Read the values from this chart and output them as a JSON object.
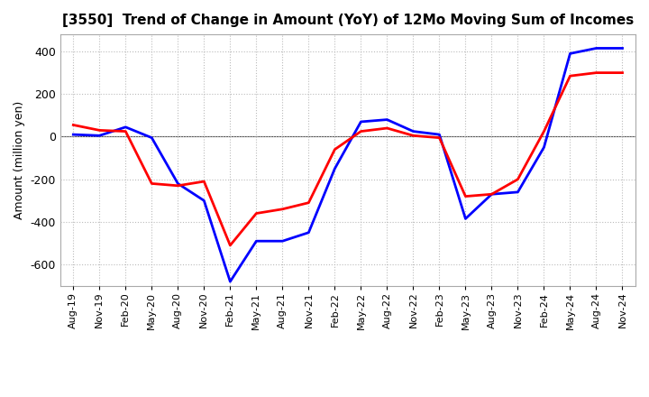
{
  "title": "[3550]  Trend of Change in Amount (YoY) of 12Mo Moving Sum of Incomes",
  "ylabel": "Amount (million yen)",
  "ylim": [
    -700,
    480
  ],
  "yticks": [
    -600,
    -400,
    -200,
    0,
    200,
    400
  ],
  "background_color": "#ffffff",
  "grid_color": "#bbbbbb",
  "ordinary_income_color": "#0000ff",
  "net_income_color": "#ff0000",
  "line_width": 2.0,
  "x_labels": [
    "Aug-19",
    "Nov-19",
    "Feb-20",
    "May-20",
    "Aug-20",
    "Nov-20",
    "Feb-21",
    "May-21",
    "Aug-21",
    "Nov-21",
    "Feb-22",
    "May-22",
    "Aug-22",
    "Nov-22",
    "Feb-23",
    "May-23",
    "Aug-23",
    "Nov-23",
    "Feb-24",
    "May-24",
    "Aug-24",
    "Nov-24"
  ],
  "ordinary_income": [
    10,
    5,
    45,
    -5,
    -220,
    -300,
    -680,
    -490,
    -490,
    -450,
    -150,
    70,
    80,
    25,
    10,
    -385,
    -270,
    -260,
    -50,
    390,
    415,
    415
  ],
  "net_income": [
    55,
    30,
    25,
    -220,
    -230,
    -210,
    -510,
    -360,
    -340,
    -310,
    -60,
    25,
    40,
    5,
    -5,
    -280,
    -270,
    -200,
    25,
    285,
    300,
    300
  ]
}
